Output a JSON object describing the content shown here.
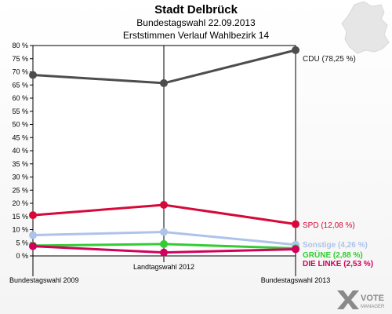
{
  "header": {
    "title": "Stadt Delbrück",
    "subtitle": "Bundestagswahl 22.09.2013",
    "subtitle2": "Erststimmen Verlauf Wahlbezirk 14"
  },
  "logo": {
    "line1": "VOTE",
    "line2": "MANAGER"
  },
  "chart_data": {
    "type": "line",
    "title": "Stadt Delbrück",
    "subtitle": "Bundestagswahl 22.09.2013 — Erststimmen Verlauf Wahlbezirk 14",
    "xlabel": "",
    "ylabel": "",
    "categories": [
      "Bundestagswahl 2009",
      "Landtagswahl 2012",
      "Bundestagswahl 2013"
    ],
    "ylim": [
      0,
      80
    ],
    "yticks": [
      0,
      5,
      10,
      15,
      20,
      25,
      30,
      35,
      40,
      45,
      50,
      55,
      60,
      65,
      70,
      75,
      80
    ],
    "ytick_suffix": " %",
    "grid": false,
    "series": [
      {
        "name": "CDU",
        "label": "CDU (78,25 %)",
        "color": "#4d4d4d",
        "label_color": "#1a1a1a",
        "values": [
          68.8,
          65.7,
          78.25
        ]
      },
      {
        "name": "SPD",
        "label": "SPD (12,08 %)",
        "color": "#d50a3a",
        "label_color": "#d50a3a",
        "values": [
          15.5,
          19.4,
          12.08
        ]
      },
      {
        "name": "Sonstige",
        "label": "Sonstige (4,26 %)",
        "color": "#adc3ea",
        "label_color": "#adc3ea",
        "values": [
          7.9,
          9.1,
          4.26
        ]
      },
      {
        "name": "GRÜNE",
        "label": "GRÜNE (2,88 %)",
        "color": "#33cc33",
        "label_color": "#33cc33",
        "values": [
          3.9,
          4.5,
          2.88
        ]
      },
      {
        "name": "DIE LINKE",
        "label": "DIE LINKE (2,53 %)",
        "color": "#d1005c",
        "label_color": "#d1005c",
        "values": [
          3.7,
          1.3,
          2.53
        ]
      }
    ]
  }
}
